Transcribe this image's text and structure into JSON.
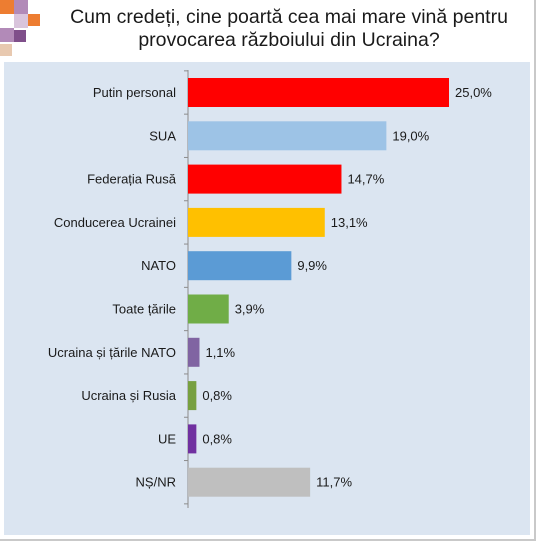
{
  "title_lines": [
    "Cum credeți, cine poartă cea mai mare vină pentru",
    "provocarea războiului din  Ucraina?"
  ],
  "chart_data": {
    "type": "bar",
    "orientation": "horizontal",
    "categories": [
      "Putin personal",
      "SUA",
      "Federația Rusă",
      "Conducerea Ucrainei",
      "NATO",
      "Toate țările",
      "Ucraina și țările NATO",
      "Ucraina și Rusia",
      "UE",
      "NȘ/NR"
    ],
    "values": [
      25.0,
      19.0,
      14.7,
      13.1,
      9.9,
      3.9,
      1.1,
      0.8,
      0.8,
      11.7
    ],
    "value_labels": [
      "25,0%",
      "19,0%",
      "14,7%",
      "13,1%",
      "9,9%",
      "3,9%",
      "1,1%",
      "0,8%",
      "0,8%",
      "11,7%"
    ],
    "colors": [
      "#ff0000",
      "#9dc3e6",
      "#ff0000",
      "#ffc000",
      "#5b9bd5",
      "#70ad47",
      "#8064a2",
      "#77a040",
      "#7030a0",
      "#bfbfbf"
    ],
    "xlim": [
      0,
      25
    ],
    "legend": "none",
    "grid": false
  }
}
